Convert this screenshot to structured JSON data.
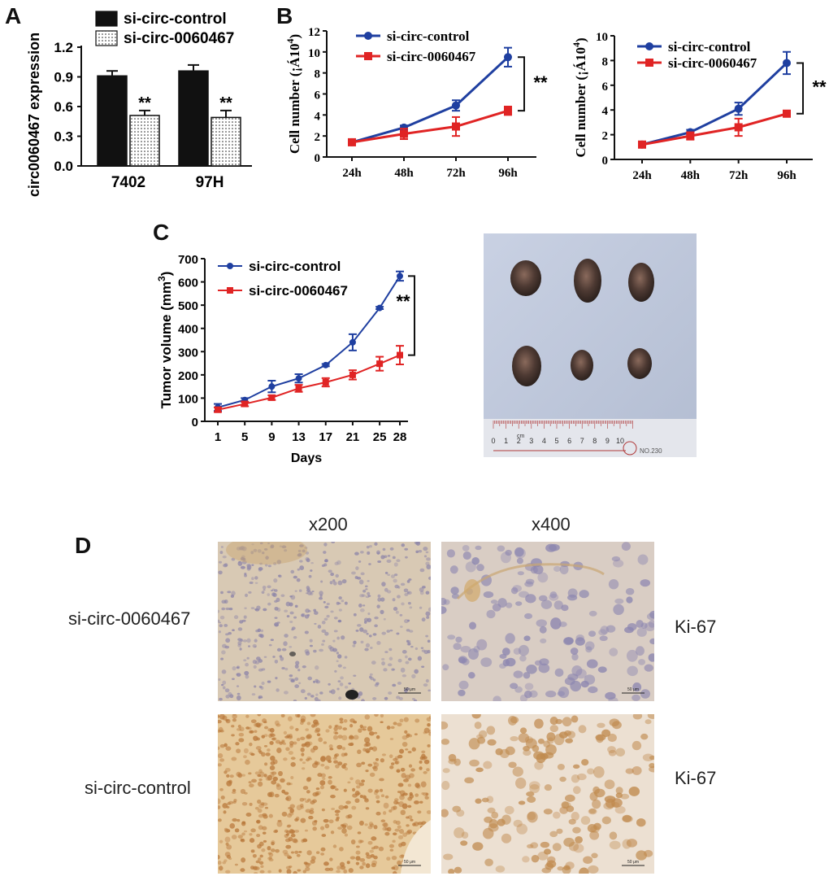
{
  "panels": {
    "a": "A",
    "b": "B",
    "c": "C",
    "d": "D"
  },
  "colors": {
    "control": "#1f3fa0",
    "treatment": "#e02424",
    "black": "#111111"
  },
  "chart_data": [
    {
      "id": "A",
      "type": "bar",
      "ylabel": "circ0060467 expression",
      "categories": [
        "7402",
        "97H"
      ],
      "ylim": [
        0,
        1.2
      ],
      "yticks": [
        "0.0",
        "0.3",
        "0.6",
        "0.9",
        "1.2"
      ],
      "series": [
        {
          "name": "si-circ-control",
          "values": [
            0.91,
            0.96
          ],
          "errors": [
            0.05,
            0.06
          ],
          "fill": "black"
        },
        {
          "name": "si-circ-0060467",
          "values": [
            0.51,
            0.49
          ],
          "errors": [
            0.05,
            0.07
          ],
          "fill": "dotted"
        }
      ],
      "annotations": [
        "**",
        "**"
      ]
    },
    {
      "id": "B1",
      "type": "line",
      "ylabel_prefix": "Cell number (",
      "ylabel_garbled": "¡Á10",
      "ylabel_sup": "4",
      "ylabel_suffix": ")",
      "categories": [
        "24h",
        "48h",
        "72h",
        "96h"
      ],
      "ylim": [
        0,
        12
      ],
      "yticks": [
        "0",
        "2",
        "4",
        "6",
        "8",
        "10",
        "12"
      ],
      "series": [
        {
          "name": "si-circ-control",
          "values": [
            1.4,
            2.8,
            4.9,
            9.5
          ],
          "errors": [
            0.2,
            0.2,
            0.5,
            0.9
          ]
        },
        {
          "name": "si-circ-0060467",
          "values": [
            1.4,
            2.2,
            2.9,
            4.4
          ],
          "errors": [
            0.2,
            0.5,
            0.9,
            0.4
          ]
        }
      ],
      "annotation": "**"
    },
    {
      "id": "B2",
      "type": "line",
      "ylabel_prefix": "Cell number (",
      "ylabel_garbled": "¡Á10",
      "ylabel_sup": "4",
      "ylabel_suffix": ")",
      "categories": [
        "24h",
        "48h",
        "72h",
        "96h"
      ],
      "ylim": [
        0,
        10
      ],
      "yticks": [
        "0",
        "2",
        "4",
        "6",
        "8",
        "10"
      ],
      "series": [
        {
          "name": "si-circ-control",
          "values": [
            1.2,
            2.2,
            4.1,
            7.8
          ],
          "errors": [
            0.2,
            0.2,
            0.5,
            0.9
          ]
        },
        {
          "name": "si-circ-0060467",
          "values": [
            1.2,
            1.9,
            2.6,
            3.7
          ],
          "errors": [
            0.2,
            0.3,
            0.7,
            0.2
          ]
        }
      ],
      "annotation": "**"
    },
    {
      "id": "C",
      "type": "line",
      "ylabel_prefix": "Tumor  volume (mm",
      "ylabel_sup": "3",
      "ylabel_suffix": ")",
      "xlabel": "Days",
      "categories": [
        "1",
        "5",
        "9",
        "13",
        "17",
        "21",
        "25",
        "28"
      ],
      "ylim": [
        0,
        700
      ],
      "yticks": [
        "0",
        "100",
        "200",
        "300",
        "400",
        "500",
        "600",
        "700"
      ],
      "series": [
        {
          "name": "si-circ-control",
          "values": [
            60,
            92,
            150,
            185,
            242,
            340,
            488,
            625
          ],
          "errors": [
            15,
            8,
            25,
            18,
            5,
            35,
            5,
            20
          ]
        },
        {
          "name": "si-circ-0060467",
          "values": [
            50,
            75,
            102,
            142,
            168,
            200,
            248,
            285
          ],
          "errors": [
            10,
            10,
            10,
            15,
            18,
            20,
            30,
            40
          ]
        }
      ],
      "annotation": "**"
    }
  ],
  "histology": {
    "col_labels": [
      "x200",
      "x400"
    ],
    "row_labels": [
      "si-circ-0060467",
      "si-circ-control"
    ],
    "stain_labels": [
      "Ki-67",
      "Ki-67"
    ],
    "scale_text": "50 μm"
  },
  "ruler": {
    "numbers": [
      "0",
      "1",
      "2",
      "3",
      "4",
      "5",
      "6",
      "7",
      "8",
      "9",
      "10"
    ],
    "unit": "cm",
    "stamp": "NO.230"
  }
}
